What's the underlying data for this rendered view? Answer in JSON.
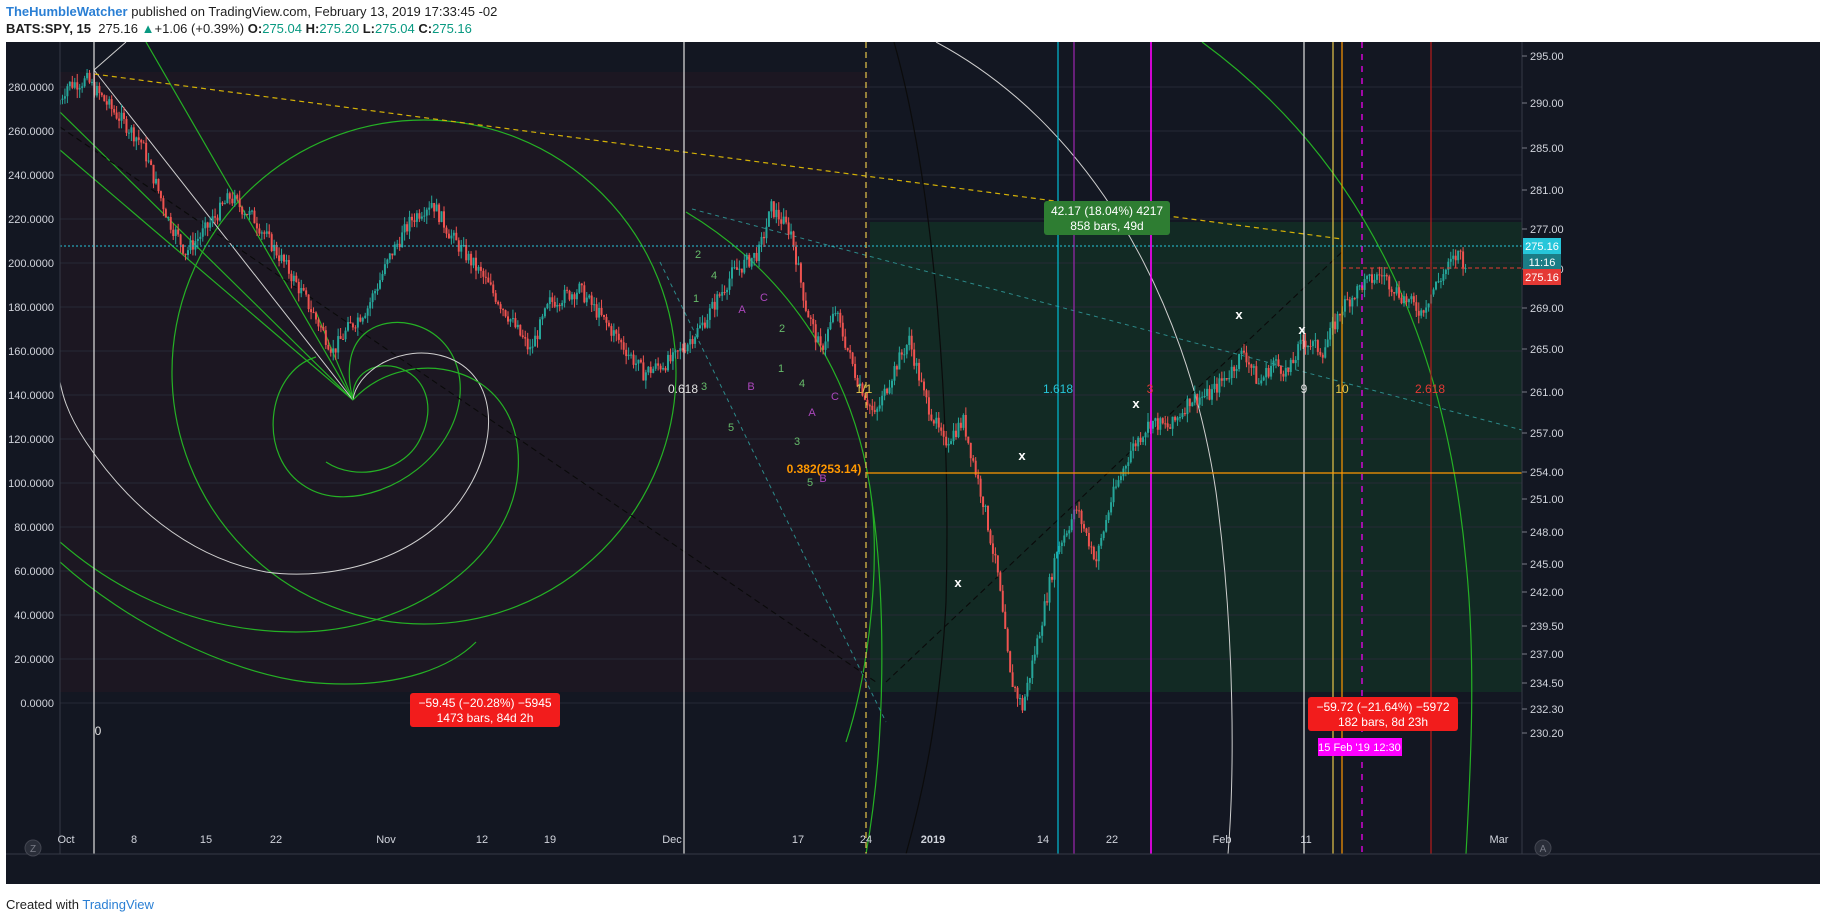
{
  "header": {
    "author": "TheHumbleWatcher",
    "published": "published on TradingView.com, February 13, 2019 17:33:45 -02",
    "symbol": "BATS:SPY, 15",
    "price": "275.16",
    "change_arrow": "▲",
    "change": "+1.06 (+0.39%)",
    "o_label": "O:",
    "o": "275.04",
    "h_label": "H:",
    "h": "275.20",
    "l_label": "L:",
    "l": "275.04",
    "c_label": "C:",
    "c": "275.16"
  },
  "footer": {
    "created_with": "Created with",
    "brand": "TradingView"
  },
  "colors": {
    "background": "#131722",
    "up_candle": "#26a69a",
    "down_candle": "#ef5350",
    "fib_green": "#25b125",
    "label_red": "#f21c1c",
    "label_green": "#2e7d32",
    "magenta": "#ff00ff",
    "cyan": "#00bcd4",
    "orange": "#ff9800",
    "yellow_dash": "#d4b106",
    "purple": "#9c27b0",
    "price_line": "#26c6da"
  },
  "chart_data": {
    "type": "candlestick",
    "symbol": "BATS:SPY",
    "interval": "15",
    "left_axis": {
      "ticks": [
        "280.0000",
        "260.0000",
        "240.0000",
        "220.0000",
        "200.0000",
        "180.0000",
        "160.0000",
        "140.0000",
        "120.0000",
        "100.0000",
        "80.0000",
        "60.0000",
        "40.0000",
        "20.0000",
        "0.0000"
      ],
      "range": [
        -5,
        285
      ]
    },
    "right_axis": {
      "ticks": [
        "295.00",
        "290.00",
        "285.00",
        "281.00",
        "277.00",
        "273.00",
        "269.00",
        "265.00",
        "261.00",
        "257.00",
        "254.00",
        "251.00",
        "248.00",
        "245.00",
        "242.00",
        "239.50",
        "237.00",
        "234.50",
        "232.30",
        "230.20"
      ],
      "current_price_label": "275.16",
      "countdown_label": "11:16",
      "red_price_label": "275.16"
    },
    "x_axis": {
      "ticks": [
        {
          "label": "Oct",
          "bold": false
        },
        {
          "label": "8",
          "bold": false
        },
        {
          "label": "15",
          "bold": false
        },
        {
          "label": "22",
          "bold": false
        },
        {
          "label": "Nov",
          "bold": false
        },
        {
          "label": "12",
          "bold": false
        },
        {
          "label": "19",
          "bold": false
        },
        {
          "label": "Dec",
          "bold": false
        },
        {
          "label": "17",
          "bold": false
        },
        {
          "label": "24",
          "bold": false
        },
        {
          "label": "2019",
          "bold": true
        },
        {
          "label": "14",
          "bold": false
        },
        {
          "label": "22",
          "bold": false
        },
        {
          "label": "Feb",
          "bold": false
        },
        {
          "label": "11",
          "bold": false
        },
        {
          "label": "Mar",
          "bold": false
        }
      ],
      "date_badge": "15 Feb '19",
      "time_badge": "12:30"
    },
    "price_path": [
      [
        0,
        272
      ],
      [
        4,
        281
      ],
      [
        12,
        283
      ],
      [
        22,
        270
      ],
      [
        34,
        255
      ],
      [
        45,
        220
      ],
      [
        52,
        205
      ],
      [
        60,
        215
      ],
      [
        70,
        230
      ],
      [
        80,
        220
      ],
      [
        92,
        200
      ],
      [
        100,
        185
      ],
      [
        112,
        160
      ],
      [
        118,
        170
      ],
      [
        126,
        180
      ],
      [
        136,
        205
      ],
      [
        144,
        220
      ],
      [
        152,
        228
      ],
      [
        160,
        212
      ],
      [
        172,
        195
      ],
      [
        182,
        178
      ],
      [
        192,
        160
      ],
      [
        200,
        182
      ],
      [
        212,
        188
      ],
      [
        226,
        168
      ],
      [
        238,
        150
      ],
      [
        250,
        156
      ],
      [
        262,
        172
      ],
      [
        274,
        195
      ],
      [
        285,
        205
      ],
      [
        290,
        225
      ],
      [
        298,
        214
      ],
      [
        304,
        180
      ],
      [
        310,
        160
      ],
      [
        316,
        178
      ],
      [
        324,
        150
      ],
      [
        332,
        130
      ],
      [
        340,
        152
      ],
      [
        346,
        165
      ],
      [
        352,
        140
      ],
      [
        360,
        118
      ],
      [
        368,
        128
      ],
      [
        376,
        92
      ],
      [
        382,
        58
      ],
      [
        387,
        12
      ],
      [
        392,
        -2
      ],
      [
        398,
        28
      ],
      [
        406,
        70
      ],
      [
        414,
        88
      ],
      [
        422,
        65
      ],
      [
        428,
        92
      ],
      [
        436,
        115
      ],
      [
        444,
        128
      ],
      [
        452,
        125
      ],
      [
        460,
        138
      ],
      [
        468,
        140
      ],
      [
        476,
        150
      ],
      [
        482,
        160
      ],
      [
        488,
        145
      ],
      [
        494,
        155
      ],
      [
        500,
        150
      ],
      [
        506,
        165
      ],
      [
        514,
        160
      ],
      [
        522,
        180
      ],
      [
        530,
        190
      ],
      [
        538,
        195
      ],
      [
        546,
        185
      ],
      [
        554,
        178
      ],
      [
        560,
        190
      ],
      [
        566,
        200
      ],
      [
        570,
        205
      ],
      [
        572,
        196
      ]
    ],
    "measure_boxes": [
      {
        "line1": "42.17 (18.04%) 4217",
        "line2": "858 bars, 49d",
        "color": "green"
      },
      {
        "line1": "−59.45 (−20.28%) −5945",
        "line2": "1473 bars, 84d 2h",
        "color": "red"
      },
      {
        "line1": "−59.72 (−21.64%) −5972",
        "line2": "182 bars, 8d 23h",
        "color": "red"
      }
    ],
    "annotations": [
      {
        "text": "0.618",
        "color": "#e0e0e0"
      },
      {
        "text": "1/1",
        "color": "#e6c54a"
      },
      {
        "text": "1.618",
        "color": "#26c6da"
      },
      {
        "text": "9",
        "color": "#e0e0e0"
      },
      {
        "text": "10",
        "color": "#e6c54a"
      },
      {
        "text": "2.618",
        "color": "#e53935"
      },
      {
        "text": "0.382(253.14)",
        "color": "#ff9800"
      },
      {
        "text": "0",
        "color": "#e0e0e0"
      },
      {
        "text": "2",
        "color": "#66bb6a"
      },
      {
        "text": "4",
        "color": "#66bb6a"
      },
      {
        "text": "1",
        "color": "#66bb6a"
      },
      {
        "text": "3",
        "color": "#66bb6a"
      },
      {
        "text": "5",
        "color": "#66bb6a"
      },
      {
        "text": "A",
        "color": "#ab47bc"
      },
      {
        "text": "B",
        "color": "#ab47bc"
      },
      {
        "text": "C",
        "color": "#ab47bc"
      },
      {
        "text": "2",
        "color": "#66bb6a"
      },
      {
        "text": "4",
        "color": "#66bb6a"
      },
      {
        "text": "1",
        "color": "#66bb6a"
      },
      {
        "text": "3",
        "color": "#66bb6a"
      },
      {
        "text": "A",
        "color": "#ab47bc"
      },
      {
        "text": "5",
        "color": "#66bb6a"
      },
      {
        "text": "B",
        "color": "#ab47bc"
      },
      {
        "text": "C",
        "color": "#ab47bc"
      },
      {
        "text": "3",
        "color": "#e53935"
      }
    ],
    "markers": [
      "x",
      "x",
      "x",
      "x",
      "x",
      "x"
    ],
    "bottom_left_button": "Z",
    "bottom_right_button": "A"
  }
}
